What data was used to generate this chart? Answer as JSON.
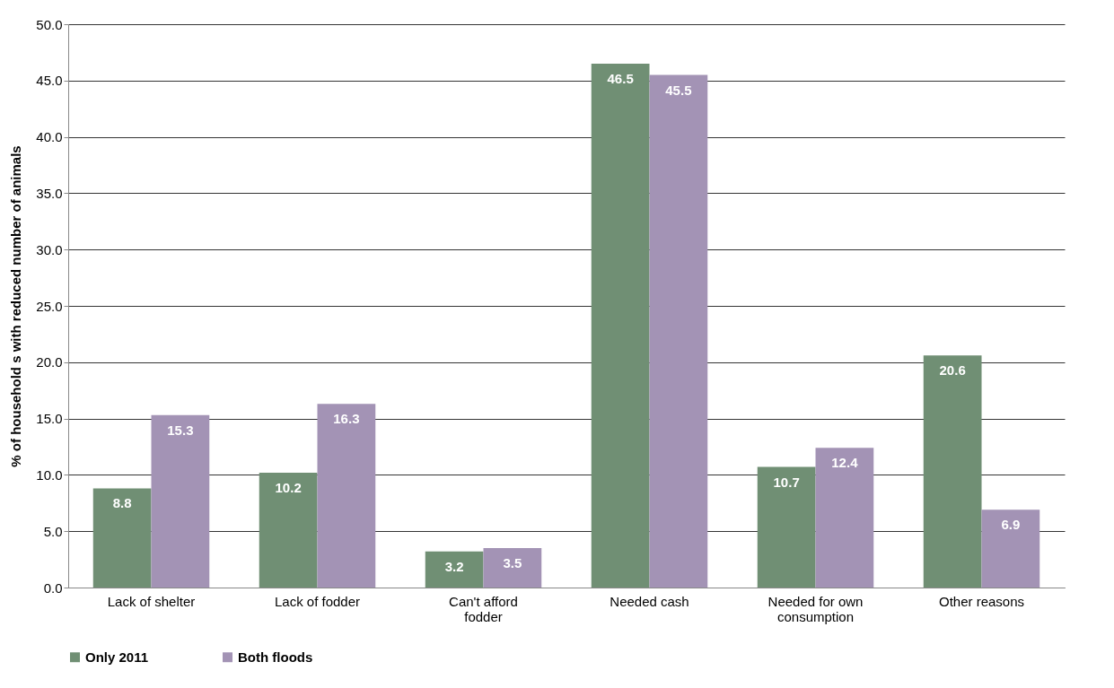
{
  "chart_data": {
    "type": "bar",
    "ylabel": "% of household s with reduced number of animals",
    "categories": [
      "Lack of shelter",
      "Lack of fodder",
      "Can't afford fodder",
      "Needed cash",
      "Needed for own consumption",
      "Other reasons"
    ],
    "series": [
      {
        "name": "Only 2011",
        "color": "#708f74",
        "values": [
          8.8,
          10.2,
          3.2,
          46.5,
          10.7,
          20.6
        ]
      },
      {
        "name": "Both floods",
        "color": "#a393b5",
        "values": [
          15.3,
          16.3,
          3.5,
          45.5,
          12.4,
          6.9
        ]
      }
    ],
    "ylim": [
      0,
      50
    ],
    "yticks": [
      {
        "value": 0,
        "label": "0.0"
      },
      {
        "value": 5,
        "label": "5.0"
      },
      {
        "value": 10,
        "label": "10.0"
      },
      {
        "value": 15,
        "label": "15.0"
      },
      {
        "value": 20,
        "label": "20.0"
      },
      {
        "value": 25,
        "label": "25.0"
      },
      {
        "value": 30,
        "label": "30.0"
      },
      {
        "value": 35,
        "label": "35.0"
      },
      {
        "value": 40,
        "label": "40.0"
      },
      {
        "value": 45,
        "label": "45.0"
      },
      {
        "value": 50,
        "label": "50.0"
      }
    ],
    "grid": "y",
    "legend": "bottom",
    "data_labels": true
  }
}
